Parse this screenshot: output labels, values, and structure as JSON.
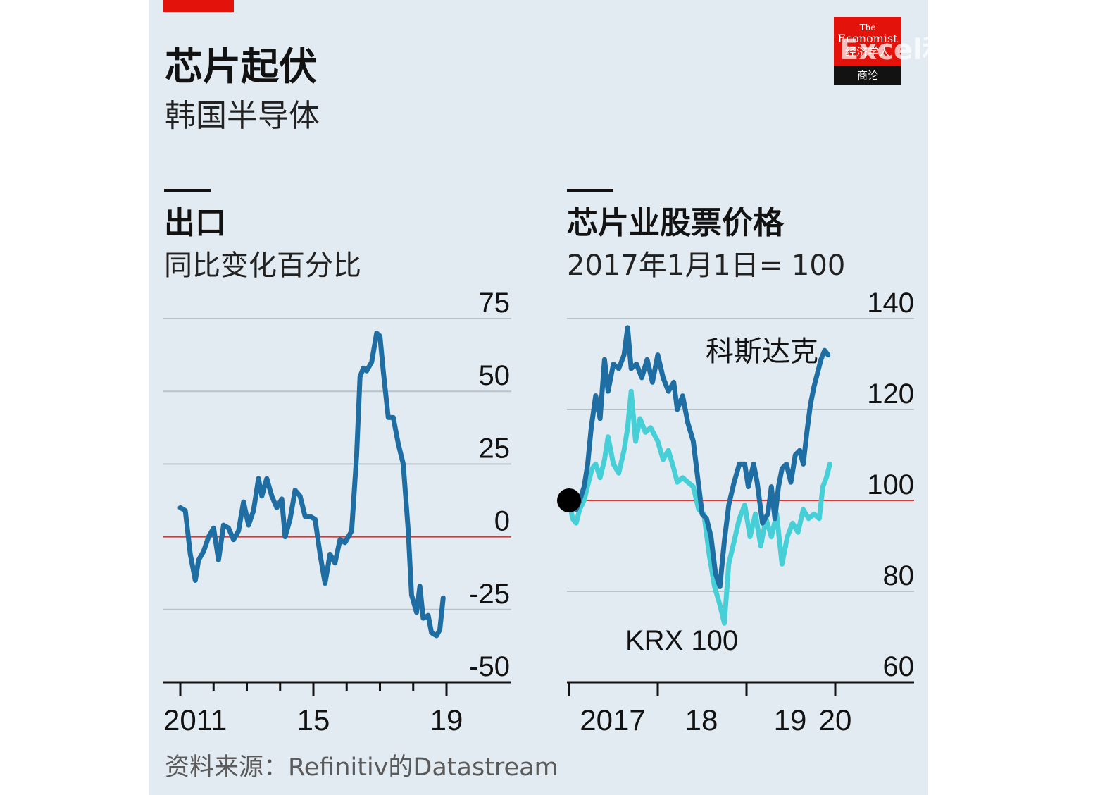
{
  "header": {
    "title": "芯片起伏",
    "subtitle": "韩国半导体"
  },
  "logo": {
    "line1": "The",
    "line2": "Economist",
    "line3": "经济学人",
    "line4": "商论"
  },
  "watermark": "Excel和PowerBI爱",
  "source": "资料来源：Refinitiv的Datastream",
  "colors": {
    "background": "#e3ebf2",
    "brand_red": "#e3120b",
    "dark_series": "#1f6ea3",
    "light_series": "#47cfd8",
    "zero_line": "#db3a34",
    "grid": "#b9c2c9"
  },
  "chart_data": [
    {
      "type": "line",
      "title": "出口",
      "subtitle": "同比变化百分比",
      "y_ticks": [
        "75",
        "50",
        "25",
        "0",
        "-25",
        "-50"
      ],
      "ylim": [
        -50,
        75
      ],
      "x_ticks": [
        {
          "label": "2011",
          "x": 2011
        },
        {
          "label": "15",
          "x": 2015
        },
        {
          "label": "19",
          "x": 2019
        }
      ],
      "xlim": [
        2010.7,
        2020.3
      ],
      "reference_line": 0,
      "series": [
        {
          "name": "",
          "color": "#1f6ea3",
          "points": [
            [
              2011.0,
              10
            ],
            [
              2011.15,
              9
            ],
            [
              2011.3,
              -6
            ],
            [
              2011.45,
              -15
            ],
            [
              2011.55,
              -8
            ],
            [
              2011.7,
              -5
            ],
            [
              2011.85,
              0
            ],
            [
              2012.0,
              3
            ],
            [
              2012.15,
              -8
            ],
            [
              2012.3,
              4
            ],
            [
              2012.45,
              3
            ],
            [
              2012.6,
              -1
            ],
            [
              2012.75,
              2
            ],
            [
              2012.9,
              12
            ],
            [
              2013.05,
              4
            ],
            [
              2013.2,
              9
            ],
            [
              2013.35,
              20
            ],
            [
              2013.45,
              14
            ],
            [
              2013.6,
              20
            ],
            [
              2013.75,
              14
            ],
            [
              2013.9,
              10
            ],
            [
              2014.05,
              13
            ],
            [
              2014.15,
              0
            ],
            [
              2014.3,
              6
            ],
            [
              2014.45,
              16
            ],
            [
              2014.6,
              14
            ],
            [
              2014.75,
              7
            ],
            [
              2014.9,
              7
            ],
            [
              2015.05,
              6
            ],
            [
              2015.2,
              -6
            ],
            [
              2015.35,
              -16
            ],
            [
              2015.5,
              -6
            ],
            [
              2015.65,
              -9
            ],
            [
              2015.8,
              -1
            ],
            [
              2015.95,
              -2
            ],
            [
              2016.05,
              0
            ],
            [
              2016.15,
              2
            ],
            [
              2016.3,
              28
            ],
            [
              2016.4,
              55
            ],
            [
              2016.5,
              58
            ],
            [
              2016.6,
              57
            ],
            [
              2016.75,
              60
            ],
            [
              2016.9,
              70
            ],
            [
              2017.0,
              69
            ],
            [
              2017.1,
              57
            ],
            [
              2017.25,
              41
            ],
            [
              2017.4,
              41
            ],
            [
              2017.55,
              32
            ],
            [
              2017.7,
              25
            ],
            [
              2017.85,
              2
            ],
            [
              2017.95,
              -20
            ],
            [
              2018.1,
              -26
            ],
            [
              2018.2,
              -17
            ],
            [
              2018.3,
              -28
            ],
            [
              2018.45,
              -27
            ],
            [
              2018.55,
              -33
            ],
            [
              2018.7,
              -34
            ],
            [
              2018.8,
              -32
            ],
            [
              2018.9,
              -21
            ]
          ]
        }
      ]
    },
    {
      "type": "line",
      "title": "芯片业股票价格",
      "subtitle": "2017年1月1日= 100",
      "y_ticks": [
        "140",
        "120",
        "100",
        "80",
        "60"
      ],
      "ylim": [
        60,
        140
      ],
      "x_ticks": [
        {
          "label": "2017",
          "x": 2017.0
        },
        {
          "label": "18",
          "x": 2018.0
        },
        {
          "label": "19",
          "x": 2019.0
        },
        {
          "label": "20",
          "x": 2020.0
        }
      ],
      "xlim": [
        2017.0,
        2020.0
      ],
      "reference_line": 100,
      "start_marker": [
        2017.0,
        100
      ],
      "series": [
        {
          "name": "科斯达克",
          "color": "#1f6ea3",
          "points": [
            [
              2017.0,
              100
            ],
            [
              2017.04,
              102
            ],
            [
              2017.08,
              98
            ],
            [
              2017.12,
              100
            ],
            [
              2017.17,
              103
            ],
            [
              2017.21,
              108
            ],
            [
              2017.25,
              116
            ],
            [
              2017.3,
              123
            ],
            [
              2017.35,
              118
            ],
            [
              2017.4,
              131
            ],
            [
              2017.44,
              124
            ],
            [
              2017.5,
              130
            ],
            [
              2017.56,
              129
            ],
            [
              2017.62,
              132
            ],
            [
              2017.66,
              138
            ],
            [
              2017.7,
              129
            ],
            [
              2017.76,
              130
            ],
            [
              2017.82,
              127
            ],
            [
              2017.88,
              131
            ],
            [
              2017.94,
              126
            ],
            [
              2018.0,
              132
            ],
            [
              2018.06,
              127
            ],
            [
              2018.12,
              124
            ],
            [
              2018.18,
              126
            ],
            [
              2018.22,
              120
            ],
            [
              2018.28,
              123
            ],
            [
              2018.34,
              117
            ],
            [
              2018.4,
              113
            ],
            [
              2018.45,
              105
            ],
            [
              2018.5,
              97
            ],
            [
              2018.55,
              96
            ],
            [
              2018.6,
              92
            ],
            [
              2018.65,
              84
            ],
            [
              2018.7,
              81
            ],
            [
              2018.75,
              91
            ],
            [
              2018.8,
              99
            ],
            [
              2018.86,
              104
            ],
            [
              2018.92,
              108
            ],
            [
              2018.98,
              108
            ],
            [
              2019.02,
              103
            ],
            [
              2019.08,
              108
            ],
            [
              2019.12,
              104
            ],
            [
              2019.18,
              95
            ],
            [
              2019.24,
              97
            ],
            [
              2019.28,
              103
            ],
            [
              2019.32,
              96
            ],
            [
              2019.36,
              103
            ],
            [
              2019.4,
              107
            ],
            [
              2019.45,
              108
            ],
            [
              2019.5,
              104
            ],
            [
              2019.55,
              110
            ],
            [
              2019.6,
              111
            ],
            [
              2019.64,
              108
            ],
            [
              2019.68,
              115
            ],
            [
              2019.72,
              121
            ],
            [
              2019.76,
              125
            ],
            [
              2019.8,
              128
            ],
            [
              2019.84,
              131
            ],
            [
              2019.88,
              133
            ],
            [
              2019.92,
              132
            ]
          ]
        },
        {
          "name": "KRX 100",
          "color": "#47cfd8",
          "points": [
            [
              2017.0,
              100
            ],
            [
              2017.04,
              96
            ],
            [
              2017.08,
              95
            ],
            [
              2017.12,
              98
            ],
            [
              2017.17,
              100
            ],
            [
              2017.22,
              104
            ],
            [
              2017.26,
              107
            ],
            [
              2017.3,
              108
            ],
            [
              2017.35,
              105
            ],
            [
              2017.4,
              109
            ],
            [
              2017.44,
              114
            ],
            [
              2017.5,
              108
            ],
            [
              2017.56,
              106
            ],
            [
              2017.62,
              111
            ],
            [
              2017.66,
              116
            ],
            [
              2017.7,
              124
            ],
            [
              2017.75,
              113
            ],
            [
              2017.8,
              118
            ],
            [
              2017.86,
              115
            ],
            [
              2017.92,
              116
            ],
            [
              2018.0,
              113
            ],
            [
              2018.06,
              109
            ],
            [
              2018.12,
              111
            ],
            [
              2018.18,
              107
            ],
            [
              2018.22,
              104
            ],
            [
              2018.28,
              105
            ],
            [
              2018.34,
              104
            ],
            [
              2018.4,
              103
            ],
            [
              2018.46,
              98
            ],
            [
              2018.52,
              97
            ],
            [
              2018.58,
              88
            ],
            [
              2018.64,
              81
            ],
            [
              2018.7,
              77
            ],
            [
              2018.75,
              73
            ],
            [
              2018.8,
              86
            ],
            [
              2018.86,
              91
            ],
            [
              2018.92,
              96
            ],
            [
              2018.98,
              99
            ],
            [
              2019.04,
              92
            ],
            [
              2019.1,
              97
            ],
            [
              2019.16,
              90
            ],
            [
              2019.22,
              96
            ],
            [
              2019.28,
              92
            ],
            [
              2019.34,
              97
            ],
            [
              2019.4,
              86
            ],
            [
              2019.46,
              92
            ],
            [
              2019.52,
              95
            ],
            [
              2019.58,
              93
            ],
            [
              2019.64,
              98
            ],
            [
              2019.7,
              96
            ],
            [
              2019.76,
              97
            ],
            [
              2019.82,
              96
            ],
            [
              2019.86,
              103
            ],
            [
              2019.9,
              105
            ],
            [
              2019.94,
              108
            ]
          ]
        }
      ]
    }
  ]
}
